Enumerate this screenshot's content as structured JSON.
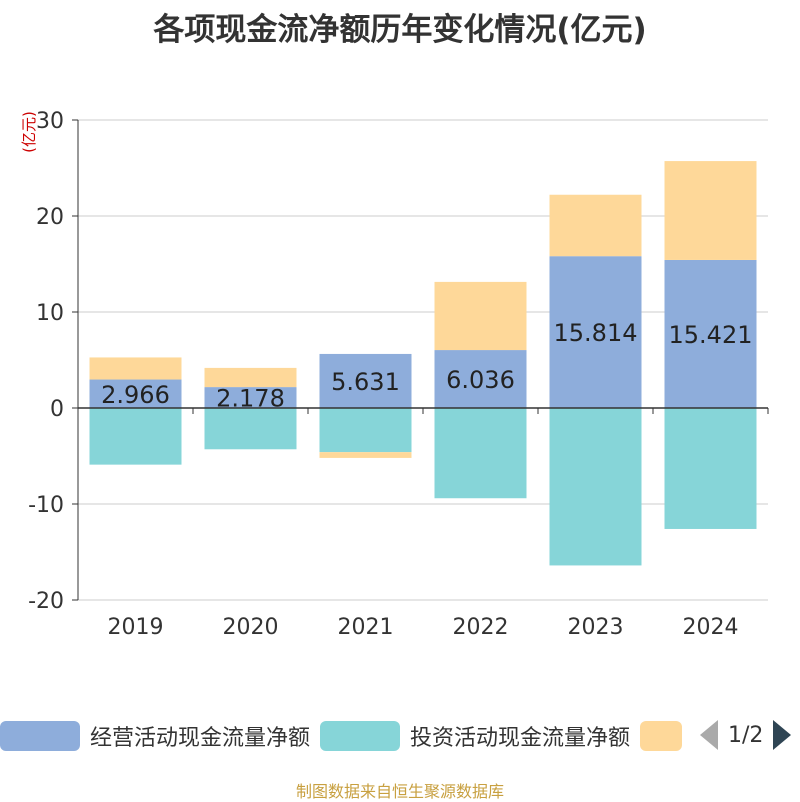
{
  "title": "各项现金流净额历年变化情况(亿元)",
  "unit_label": "(亿元)",
  "source": "制图数据来自恒生聚源数据库",
  "legend": {
    "items": [
      {
        "label": "经营活动现金流量净额",
        "color": "#8eaddb"
      },
      {
        "label": "投资活动现金流量净额",
        "color": "#86d5d8"
      },
      {
        "label": "",
        "color": "#fed899"
      }
    ],
    "page_text": "1/2"
  },
  "chart_data": {
    "type": "bar",
    "stacked": true,
    "categories": [
      "2019",
      "2020",
      "2021",
      "2022",
      "2023",
      "2024"
    ],
    "series": [
      {
        "name": "经营活动现金流量净额",
        "color": "#8eaddb",
        "values": [
          2.966,
          2.178,
          5.631,
          6.036,
          15.814,
          15.421
        ],
        "labels": [
          "2.966",
          "2.178",
          "5.631",
          "6.036",
          "15.814",
          "15.421"
        ]
      },
      {
        "name": "投资活动现金流量净额",
        "color": "#86d5d8",
        "values": [
          -5.9,
          -4.3,
          -4.6,
          -9.4,
          -16.4,
          -12.6
        ]
      },
      {
        "name": "",
        "color": "#fed899",
        "values": [
          2.3,
          2.0,
          -0.6,
          7.1,
          6.4,
          10.3
        ]
      }
    ],
    "ylim": [
      -20,
      30
    ],
    "yticks": [
      -20,
      -10,
      0,
      10,
      20,
      30
    ],
    "grid": true,
    "legend_position": "bottom"
  }
}
